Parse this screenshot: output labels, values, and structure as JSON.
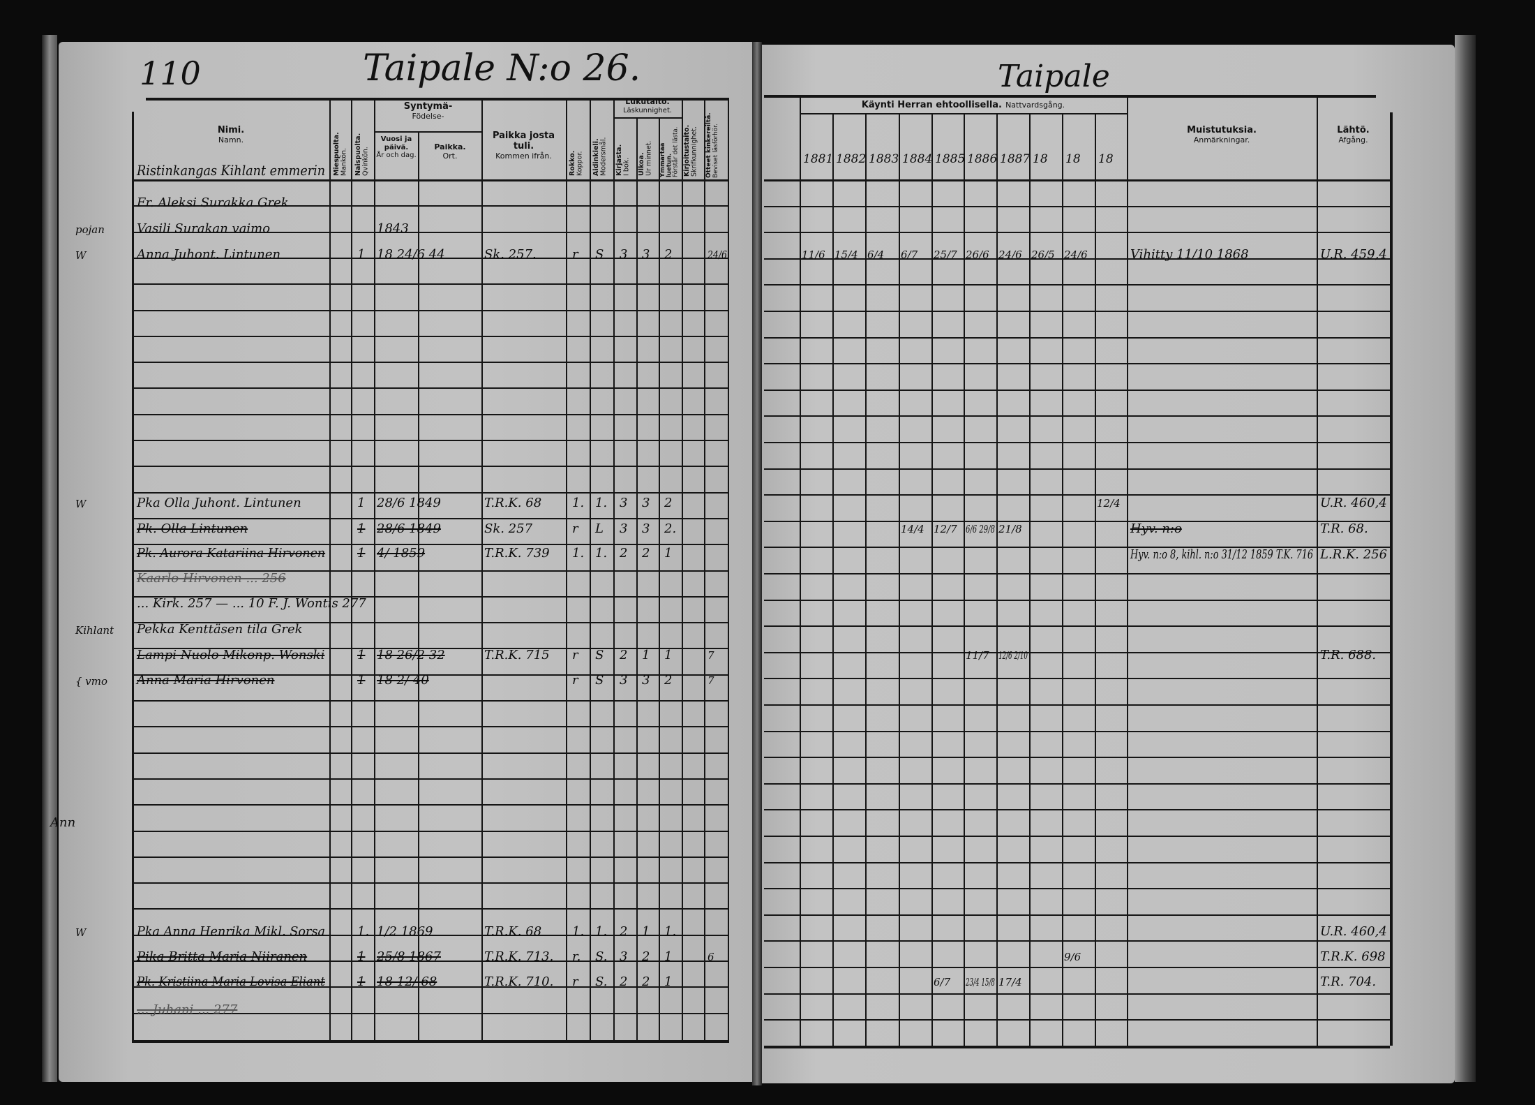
{
  "left_page": {
    "page_number": "110",
    "title": "Taipale N:o 26.",
    "headers": {
      "name": {
        "fi": "Nimi.",
        "sv": "Namn."
      },
      "male": {
        "fi": "Miespuolta.",
        "sv": "Mankön."
      },
      "female": {
        "fi": "Naispuolta.",
        "sv": "Qvinkön."
      },
      "birth": {
        "fi": "Syntymä-",
        "sv": "Födelse-"
      },
      "birth_date": {
        "fi": "Vuosi ja päivä.",
        "sv": "År och dag."
      },
      "birth_place": {
        "fi": "Paikka.",
        "sv": "Ort."
      },
      "from_place": {
        "fi": "Paikka josta tuli.",
        "sv": "Kommen ifrån."
      },
      "smallpox": {
        "fi": "Rokko.",
        "sv": "Koppor."
      },
      "mother_tongue": {
        "fi": "Äidinkieli.",
        "sv": "Modersmål."
      },
      "literacy": {
        "fi": "Lukutaito.",
        "sv": "Läskunnighet."
      },
      "from_book": {
        "fi": "Kirjasta.",
        "sv": "I bok."
      },
      "by_heart": {
        "fi": "Ulkoa.",
        "sv": "Ur minnet."
      },
      "understands": {
        "fi": "Ymmärtää luetun.",
        "sv": "Förstår det lästa."
      },
      "writing": {
        "fi": "Kirjoitustaito.",
        "sv": "Skrifkunnighet."
      },
      "exams": {
        "fi": "Otteet kinkereiltä.",
        "sv": "Beviset läsförhör."
      }
    },
    "household_heading": "Ristinkangas Kihlant emmerin",
    "entries": [
      {
        "prefix": "",
        "name": "Fr. Aleksi Surakka  Grek",
        "male": "",
        "birth": "",
        "from": "",
        "rokko": "",
        "kieli": "",
        "kirja": "",
        "ulkoa": "",
        "ymm": "",
        "otteet": "",
        "struck": false
      },
      {
        "prefix": "pojan",
        "name": "Vasili Surakan vaimo",
        "male": "",
        "birth": "1843",
        "from": "",
        "rokko": "",
        "kieli": "",
        "kirja": "",
        "ulkoa": "",
        "ymm": "",
        "otteet": "",
        "struck": false
      },
      {
        "prefix": "W",
        "name": "Anna Juhont. Lintunen",
        "male": "1",
        "birth": "18 24/6 44",
        "from": "Sk. 257.",
        "rokko": "r",
        "kieli": "S",
        "kirja": "3",
        "ulkoa": "3",
        "ymm": "2",
        "otteet": "24/6",
        "struck": false
      },
      {
        "prefix": "W",
        "name": "Pka Olla Juhont. Lintunen",
        "male": "1",
        "birth": "28/6 1849",
        "from": "T.R.K. 68",
        "rokko": "1.",
        "kieli": "1.",
        "kirja": "3",
        "ulkoa": "3",
        "ymm": "2",
        "otteet": "",
        "struck": false
      },
      {
        "prefix": "",
        "name": "Pk. Olla Lintunen",
        "male": "1",
        "birth": "28/6 1849",
        "from": "Sk. 257",
        "rokko": "r",
        "kieli": "L",
        "kirja": "3",
        "ulkoa": "3",
        "ymm": "2.",
        "otteet": "",
        "struck": true
      },
      {
        "prefix": "",
        "name": "Pk. Aurora Katariina Hirvonen",
        "male": "1",
        "birth": "4/ 1859",
        "from": "T.R.K. 739",
        "rokko": "1.",
        "kieli": "1.",
        "kirja": "2",
        "ulkoa": "2",
        "ymm": "1",
        "otteet": "",
        "struck": true
      },
      {
        "prefix": "",
        "name": "Kaarlo Hirvonen ... 256",
        "male": "",
        "birth": "",
        "from": "",
        "rokko": "",
        "kieli": "",
        "kirja": "",
        "ulkoa": "",
        "ymm": "",
        "otteet": "",
        "struck": true
      },
      {
        "prefix": "",
        "name": "... Kirk. 257 — ... 10 F.   J. Wontis 277",
        "male": "",
        "birth": "",
        "from": "",
        "rokko": "",
        "kieli": "",
        "kirja": "",
        "ulkoa": "",
        "ymm": "",
        "otteet": "",
        "struck": false
      },
      {
        "prefix": "Kihlant",
        "name": "Pekka Kenttäsen tila   Grek",
        "male": "",
        "birth": "",
        "from": "",
        "rokko": "",
        "kieli": "",
        "kirja": "",
        "ulkoa": "",
        "ymm": "",
        "otteet": "",
        "struck": false
      },
      {
        "prefix": "",
        "name": "Lampi Nuolo Mikonp. Wonski",
        "male": "1",
        "birth": "18 26/2 32",
        "from": "T.R.K. 715",
        "rokko": "r",
        "kieli": "S",
        "kirja": "2",
        "ulkoa": "1",
        "ymm": "1",
        "otteet": "7",
        "struck": true
      },
      {
        "prefix": "{ vmo",
        "name": "Anna Maria Hirvonen",
        "male": "1",
        "birth": "18 2/ 40",
        "from": "",
        "rokko": "r",
        "kieli": "S",
        "kirja": "3",
        "ulkoa": "3",
        "ymm": "2",
        "otteet": "7",
        "struck": true
      },
      {
        "prefix": "W",
        "name": "Pka Anna Henrika Mikl. Sorsa",
        "male": "1.",
        "birth": "1/2 1869",
        "from": "T.R.K. 68",
        "rokko": "1.",
        "kieli": "1.",
        "kirja": "2",
        "ulkoa": "1",
        "ymm": "1.",
        "otteet": "",
        "struck": false
      },
      {
        "prefix": "",
        "name": "Pika Britta Maria Niiranen",
        "male": "1",
        "birth": "25/8 1867",
        "from": "T.R.K. 713.",
        "rokko": "r.",
        "kieli": "S.",
        "kirja": "3",
        "ulkoa": "2",
        "ymm": "1",
        "otteet": "6",
        "struck": true
      },
      {
        "prefix": "",
        "name": "Pk. Kristiina Maria Lovisa Eliant",
        "male": "1",
        "birth": "18 12/ 68",
        "from": "T.R.K. 710.",
        "rokko": "r",
        "kieli": "S.",
        "kirja": "2",
        "ulkoa": "2",
        "ymm": "1",
        "otteet": "",
        "struck": true
      },
      {
        "prefix": "",
        "name": "... Juhani ... 277",
        "male": "",
        "birth": "",
        "from": "",
        "rokko": "",
        "kieli": "",
        "kirja": "",
        "ulkoa": "",
        "ymm": "",
        "otteet": "",
        "struck": true
      }
    ],
    "margin_note": "Ann"
  },
  "right_page": {
    "title": "Taipale",
    "headers": {
      "communion": {
        "fi": "Käynti Herran ehtoollisella.",
        "sv": "Nattvardsgång."
      },
      "years": [
        "1881",
        "1882",
        "1883",
        "1884",
        "1885",
        "1886",
        "1887",
        "18",
        "18",
        "18"
      ],
      "remarks": {
        "fi": "Muistutuksia.",
        "sv": "Anmärkningar."
      },
      "departure": {
        "fi": "Lähtö.",
        "sv": "Afgång."
      }
    },
    "entries": [
      {
        "communion": [
          "11/6",
          "15/4",
          "6/4",
          "6/7",
          "25/7",
          "26/6",
          "24/6",
          "26/5",
          "24/6",
          ""
        ],
        "remark": "Vihitty 11/10 1868",
        "departure": "U.R. 459,4"
      },
      {
        "communion": [
          "",
          "",
          "",
          "",
          "",
          "",
          "",
          "",
          "",
          "12/4"
        ],
        "remark": "",
        "departure": "U.R. 460,4"
      },
      {
        "communion": [
          "",
          "",
          "",
          "14/4",
          "12/7",
          "6/6 29/8",
          "21/8",
          "",
          "",
          ""
        ],
        "remark": "Hyv. n:o",
        "departure": "T.R. 68."
      },
      {
        "communion": [
          "",
          "",
          "",
          "",
          "",
          "",
          "",
          "",
          "",
          ""
        ],
        "remark": "Hyv. n:o 8, kihl. n:o 31/12 1859 T.K. 716",
        "departure": "L.R.K. 256"
      },
      {
        "communion": [
          "",
          "",
          "",
          "",
          "",
          "11/7",
          "12/6 2/10",
          "",
          "",
          ""
        ],
        "remark": "",
        "departure": "T.R. 688."
      },
      {
        "communion": [
          "",
          "",
          "",
          "",
          "",
          "",
          "",
          "",
          "",
          ""
        ],
        "remark": "",
        "departure": "U.R. 460,4"
      },
      {
        "communion": [
          "",
          "",
          "",
          "",
          "",
          "",
          "",
          "",
          "9/6",
          ""
        ],
        "remark": "",
        "departure": "T.R.K. 698"
      },
      {
        "communion": [
          "",
          "",
          "",
          "",
          "6/7",
          "23/4 15/8",
          "17/4",
          "",
          "",
          ""
        ],
        "remark": "",
        "departure": "T.R. 704."
      }
    ]
  }
}
